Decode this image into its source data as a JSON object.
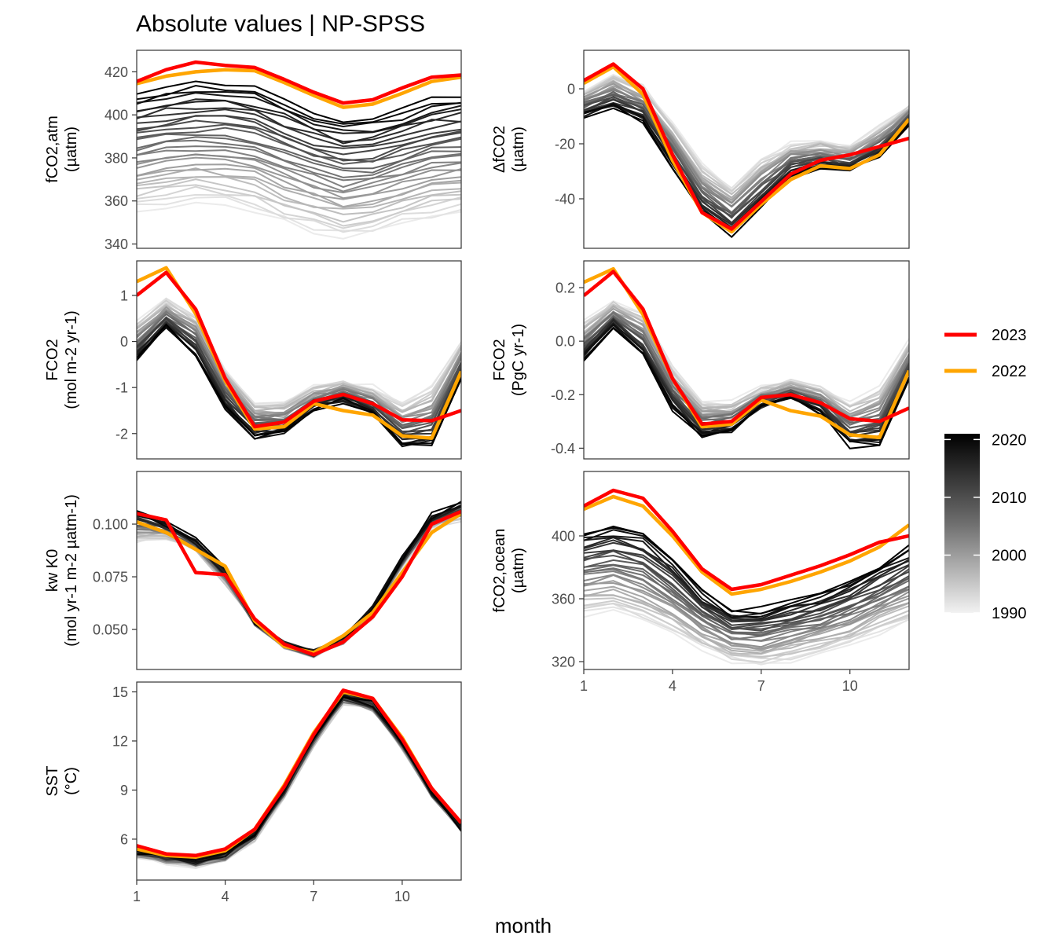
{
  "title": "Absolute values | NP-SPSS",
  "xlabel": "month",
  "legend": {
    "lines": [
      {
        "label": "2023",
        "color": "#ff0000"
      },
      {
        "label": "2022",
        "color": "#ffa500"
      }
    ],
    "colorbar": {
      "labels": [
        "2020",
        "2010",
        "2000",
        "1990"
      ],
      "values": [
        2020,
        2010,
        2000,
        1990
      ],
      "range": [
        1990,
        2021
      ]
    }
  },
  "colors": {
    "highlight_2023": "#ff0000",
    "highlight_2022": "#ffa500",
    "background_years": "grey ramp light (1990) to black (2021)"
  },
  "chart_data": [
    {
      "type": "line",
      "panel": "fco2-atm",
      "ylabel_lines": [
        "fCO2,atm",
        "(µatm)"
      ],
      "xticks": [
        1,
        4,
        7,
        10
      ],
      "yticks": [
        340,
        360,
        380,
        400,
        420
      ],
      "xlim": [
        1,
        12
      ],
      "ylim": [
        338,
        430
      ],
      "series_2023": [
        415.5,
        421,
        424.5,
        423,
        422,
        416.5,
        410.5,
        405.5,
        407,
        412.5,
        417.5,
        418.5
      ],
      "series_2022": [
        414.5,
        418,
        420,
        421,
        420.5,
        415,
        409,
        403.5,
        405,
        410,
        415.5,
        417.5
      ],
      "background_range": {
        "base_first": [
          356,
          358,
          360,
          359,
          356,
          350,
          346,
          343,
          345,
          349,
          352,
          355
        ],
        "base_last": [
          409.5,
          412.5,
          414.5,
          414,
          412,
          407,
          401.5,
          397,
          398.5,
          402,
          407,
          408.5
        ]
      }
    },
    {
      "type": "line",
      "panel": "delta-fco2",
      "ylabel_lines": [
        "ΔfCO2",
        "(µatm)"
      ],
      "xticks": [
        1,
        4,
        7,
        10
      ],
      "yticks": [
        -40,
        -20,
        0
      ],
      "xlim": [
        1,
        12
      ],
      "ylim": [
        -58,
        14
      ],
      "series_2023": [
        3,
        9,
        0,
        -24,
        -45,
        -51,
        -41,
        -31,
        -26,
        -24,
        -21,
        -18
      ],
      "series_2022": [
        2,
        8,
        -2,
        -26,
        -45,
        -52,
        -42,
        -33,
        -28,
        -29,
        -24,
        -11
      ],
      "background_range": {
        "base_first": [
          -1,
          5,
          1,
          -12,
          -28,
          -36,
          -26,
          -20,
          -19,
          -21,
          -14,
          -6
        ],
        "base_last": [
          -10,
          -7,
          -12,
          -29,
          -46,
          -53,
          -42,
          -32,
          -29,
          -30,
          -25,
          -13
        ]
      }
    },
    {
      "type": "line",
      "panel": "fco2-flux-area",
      "ylabel_lines": [
        "FCO2",
        "(mol m-2 yr-1)"
      ],
      "xticks": [
        1,
        4,
        7,
        10
      ],
      "yticks": [
        -2,
        -1,
        0,
        1
      ],
      "xlim": [
        1,
        12
      ],
      "ylim": [
        -2.55,
        1.75
      ],
      "series_2023": [
        1.0,
        1.5,
        0.7,
        -0.8,
        -1.85,
        -1.75,
        -1.3,
        -1.15,
        -1.35,
        -1.7,
        -1.72,
        -1.5
      ],
      "series_2022": [
        1.3,
        1.6,
        0.6,
        -0.85,
        -1.9,
        -1.85,
        -1.35,
        -1.5,
        -1.6,
        -2.05,
        -2.1,
        -0.65
      ],
      "background_range": {
        "base_first": [
          0.4,
          0.9,
          0.6,
          -0.6,
          -1.35,
          -1.35,
          -1.0,
          -0.9,
          -1.0,
          -1.35,
          -1.0,
          0.0
        ],
        "base_last": [
          -0.4,
          0.3,
          -0.3,
          -1.45,
          -2.1,
          -2.0,
          -1.45,
          -1.3,
          -1.6,
          -2.3,
          -2.3,
          -0.8
        ]
      }
    },
    {
      "type": "line",
      "panel": "fco2-flux-total",
      "ylabel_lines": [
        "FCO2",
        "(PgC yr-1)"
      ],
      "xticks": [
        1,
        4,
        7,
        10
      ],
      "yticks": [
        -0.4,
        -0.2,
        0.0,
        0.2
      ],
      "xlim": [
        1,
        12
      ],
      "ylim": [
        -0.44,
        0.3
      ],
      "series_2023": [
        0.17,
        0.26,
        0.12,
        -0.14,
        -0.31,
        -0.3,
        -0.21,
        -0.2,
        -0.23,
        -0.29,
        -0.3,
        -0.25
      ],
      "series_2022": [
        0.22,
        0.27,
        0.1,
        -0.14,
        -0.32,
        -0.31,
        -0.22,
        -0.26,
        -0.28,
        -0.35,
        -0.36,
        -0.11
      ],
      "background_range": {
        "base_first": [
          0.07,
          0.15,
          0.1,
          -0.1,
          -0.23,
          -0.23,
          -0.17,
          -0.15,
          -0.17,
          -0.23,
          -0.17,
          0.0
        ],
        "base_last": [
          -0.07,
          0.05,
          -0.05,
          -0.25,
          -0.36,
          -0.34,
          -0.25,
          -0.22,
          -0.27,
          -0.39,
          -0.39,
          -0.14
        ]
      }
    },
    {
      "type": "line",
      "panel": "kw-k0",
      "ylabel_lines": [
        "kw K0",
        "(mol yr-1 m-2 µatm-1)"
      ],
      "xticks": [
        1,
        4,
        7,
        10
      ],
      "yticks": [
        0.05,
        0.075,
        0.1
      ],
      "xlim": [
        1,
        12
      ],
      "ylim": [
        0.031,
        0.125
      ],
      "series_2023": [
        0.105,
        0.102,
        0.077,
        0.076,
        0.055,
        0.043,
        0.038,
        0.044,
        0.056,
        0.075,
        0.1,
        0.106
      ],
      "series_2022": [
        0.101,
        0.096,
        0.088,
        0.08,
        0.054,
        0.042,
        0.039,
        0.047,
        0.058,
        0.077,
        0.096,
        0.105
      ],
      "background_range": {
        "base_first": [
          0.092,
          0.094,
          0.088,
          0.072,
          0.053,
          0.042,
          0.038,
          0.044,
          0.056,
          0.08,
          0.098,
          0.102
        ],
        "base_last": [
          0.106,
          0.1,
          0.092,
          0.078,
          0.054,
          0.043,
          0.039,
          0.046,
          0.06,
          0.084,
          0.104,
          0.11
        ]
      }
    },
    {
      "type": "line",
      "panel": "fco2-ocean",
      "ylabel_lines": [
        "fCO2,ocean",
        "(µatm)"
      ],
      "xticks": [
        1,
        4,
        7,
        10
      ],
      "yticks": [
        320,
        360,
        400
      ],
      "xlim": [
        1,
        12
      ],
      "ylim": [
        315,
        441
      ],
      "series_2023": [
        419,
        429,
        424,
        403,
        379,
        366,
        369,
        375,
        381,
        388,
        396,
        400
      ],
      "series_2022": [
        417,
        425,
        419,
        400,
        377,
        363,
        366,
        371,
        377,
        384,
        393,
        407
      ],
      "background_range": {
        "base_first": [
          350,
          352,
          346,
          338,
          328,
          320,
          318,
          321,
          325,
          330,
          338,
          345
        ],
        "base_last": [
          402,
          406,
          402,
          386,
          365,
          352,
          353,
          358,
          363,
          371,
          381,
          392
        ]
      }
    },
    {
      "type": "line",
      "panel": "sst",
      "ylabel_lines": [
        "SST",
        "(°C)"
      ],
      "xticks": [
        1,
        4,
        7,
        10
      ],
      "yticks": [
        6,
        9,
        12,
        15
      ],
      "xlim": [
        1,
        12
      ],
      "ylim": [
        3.5,
        15.6
      ],
      "series_2023": [
        5.6,
        5.1,
        5.0,
        5.4,
        6.6,
        9.2,
        12.4,
        15.1,
        14.6,
        12.1,
        9.1,
        7.0
      ],
      "series_2022": [
        5.4,
        5.0,
        4.9,
        5.3,
        6.6,
        9.3,
        12.5,
        15.0,
        14.6,
        12.2,
        9.1,
        7.0
      ],
      "background_range": {
        "base_first": [
          5.0,
          4.6,
          4.4,
          4.8,
          6.0,
          8.6,
          11.8,
          14.3,
          13.9,
          11.6,
          8.7,
          6.6
        ],
        "base_last": [
          5.3,
          4.9,
          4.7,
          5.1,
          6.4,
          9.0,
          12.3,
          14.8,
          14.3,
          11.9,
          8.9,
          6.7
        ]
      }
    }
  ]
}
